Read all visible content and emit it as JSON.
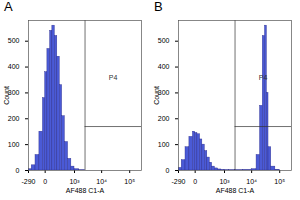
{
  "chart_data": [
    {
      "type": "histogram",
      "title": "A",
      "xlabel": "AF488 C1-A",
      "ylabel": "Count",
      "color": "#4a5ad6",
      "log": "x",
      "bins": [
        -290,
        -200,
        -120,
        -60,
        -20,
        0,
        20,
        50,
        80,
        120,
        170,
        230,
        300,
        400,
        550,
        750,
        1000,
        1500,
        2500
      ],
      "counts": [
        5,
        20,
        60,
        150,
        280,
        380,
        470,
        540,
        560,
        520,
        440,
        330,
        210,
        110,
        45,
        15,
        5,
        1
      ],
      "xlim": [
        -290,
        262144
      ],
      "xticks": [
        -290,
        0,
        {
          "value": 1000,
          "label": "10³"
        },
        {
          "value": 10000,
          "label": "10⁴"
        },
        {
          "value": 100000,
          "label": "10⁵"
        }
      ],
      "ylim": [
        0,
        580
      ],
      "yticks": [
        0,
        100,
        200,
        300,
        400,
        500
      ],
      "gate": {
        "label": "P4",
        "x": 2500,
        "y": 170
      }
    },
    {
      "type": "histogram",
      "title": "B",
      "xlabel": "AF488 C1-A",
      "ylabel": "Count",
      "color": "#4a5ad6",
      "log": "x",
      "bins": [
        -290,
        -200,
        -120,
        -60,
        -20,
        0,
        20,
        50,
        80,
        120,
        170,
        230,
        300,
        400,
        550,
        750,
        1000,
        1500,
        2500,
        5000,
        10000,
        15000,
        20000,
        25000,
        30000,
        35000,
        40000,
        50000,
        70000,
        100000
      ],
      "counts": [
        10,
        40,
        90,
        130,
        150,
        145,
        140,
        120,
        100,
        75,
        50,
        30,
        15,
        8,
        4,
        2,
        1,
        1,
        1,
        2,
        5,
        60,
        250,
        520,
        560,
        300,
        90,
        15,
        3
      ],
      "xlim": [
        -290,
        262144
      ],
      "xticks": [
        -290,
        0,
        {
          "value": 1000,
          "label": "10³"
        },
        {
          "value": 10000,
          "label": "10⁴"
        },
        {
          "value": 100000,
          "label": "10⁵"
        }
      ],
      "ylim": [
        0,
        580
      ],
      "yticks": [
        0,
        100,
        200,
        300,
        400,
        500
      ],
      "gate": {
        "label": "P4",
        "x": 2500,
        "y": 170
      }
    }
  ]
}
